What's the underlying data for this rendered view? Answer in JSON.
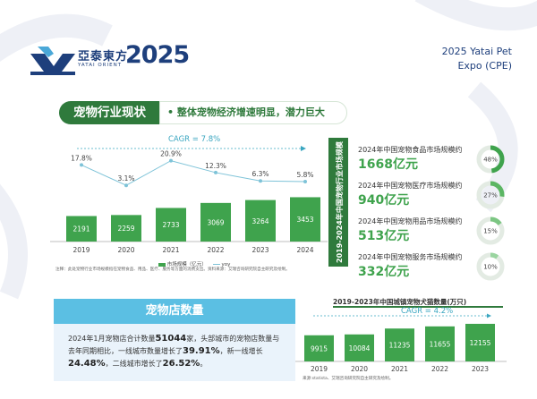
{
  "header": {
    "logo_cn": "亞泰東方",
    "logo_en": "YATAI ORIENT",
    "logo_year": "2025",
    "expo_line1": "2025 Yatai Pet",
    "expo_line2": "Expo (CPE)"
  },
  "section": {
    "title": "宠物行业现状",
    "subtitle": "• 整体宠物经济增速明显，潜力巨大"
  },
  "colors": {
    "primary_green": "#2f7a3c",
    "bar_green": "#3fa34d",
    "line_blue": "#7ec3d8",
    "store_blue": "#5bbfe3",
    "navy": "#1e3f7c"
  },
  "chart_data": [
    {
      "type": "bar",
      "subtype": "bar+line",
      "cagr_label": "CAGR = 7.8%",
      "categories": [
        "2019",
        "2020",
        "2021",
        "2022",
        "2023",
        "2024"
      ],
      "series": [
        {
          "name": "市场规模（亿元）",
          "type": "bar",
          "values": [
            2191,
            2259,
            2733,
            3069,
            3264,
            3453
          ]
        },
        {
          "name": "yoy",
          "type": "line",
          "values": [
            17.8,
            3.1,
            20.9,
            12.3,
            6.3,
            5.8
          ],
          "labels": [
            "17.8%",
            "3.1%",
            "20.9%",
            "12.3%",
            "6.3%",
            "5.8%"
          ]
        }
      ],
      "legend": [
        "市场规模（亿元）",
        "yoy"
      ],
      "note": "注释：此处宠物行业市场规模指在宠物食品、用品、医疗、服务等方面的消费支出。资料来源：艾瑞咨询研究院自主研究及绘制。"
    },
    {
      "type": "bar",
      "title": "2019-2023年中国城镇宠物犬猫数量(万只)",
      "cagr_label": "CAGR = 4.2%",
      "categories": [
        "2019",
        "2020",
        "2021",
        "2022",
        "2023"
      ],
      "values": [
        9915,
        10084,
        11235,
        11655,
        12155
      ],
      "note": "来源:statista、艾瑞咨询研究院自主研究及绘制。"
    }
  ],
  "banner": {
    "text": "2019-2024年中国宠物行业市场规模"
  },
  "stats": [
    {
      "title": "2024年中国宠物食品市场规模约",
      "value": "1668亿元",
      "percent": 48,
      "label": "48%"
    },
    {
      "title": "2024年中国宠物医疗市场规模约",
      "value": "940亿元",
      "percent": 27,
      "label": "27%"
    },
    {
      "title": "2024年中国宠物用品市场规模约",
      "value": "513亿元",
      "percent": 15,
      "label": "15%"
    },
    {
      "title": "2024年中国宠物服务市场规模约",
      "value": "332亿元",
      "percent": 10,
      "label": "10%"
    }
  ],
  "store": {
    "heading": "宠物店数量",
    "t1": "2024年1月宠物店合计数量",
    "n1": "51044",
    "t2": "家，头部城市的宠物店数量与去年同期相比，一线城市数量增长了",
    "n2": "39.91%",
    "t3": "，新一线增长",
    "n3": "24.48%",
    "t4": "，二线城市增长了",
    "n4": "26.52%",
    "t5": "。"
  }
}
